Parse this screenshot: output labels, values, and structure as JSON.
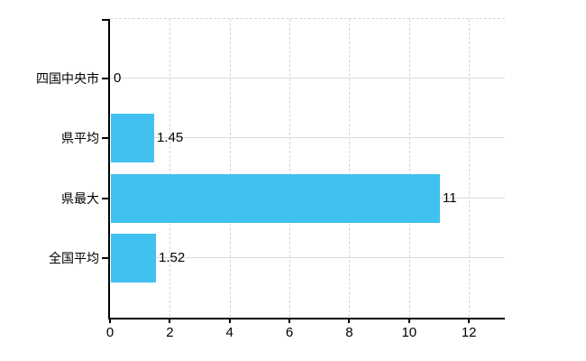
{
  "chart_data": {
    "type": "bar",
    "orientation": "horizontal",
    "title": "",
    "xlabel": "",
    "ylabel": "",
    "categories": [
      "四国中央市",
      "県平均",
      "県最大",
      "全国平均"
    ],
    "values": [
      0,
      1.45,
      11,
      1.52
    ],
    "value_labels": [
      "0",
      "1.45",
      "11",
      "1.52"
    ],
    "x_ticks": [
      0,
      2,
      4,
      6,
      8,
      10,
      12
    ],
    "x_tick_labels": [
      "0",
      "2",
      "4",
      "6",
      "8",
      "10",
      "12"
    ],
    "xlim": [
      0,
      13.2
    ],
    "grid": "on",
    "legend": "none",
    "colors": {
      "bar": "#41c1f0",
      "axis": "#000000",
      "grid_solid": "#d9ded9",
      "grid_dashed": "#d5d5d5",
      "text": "#000000",
      "background": "#ffffff"
    }
  }
}
